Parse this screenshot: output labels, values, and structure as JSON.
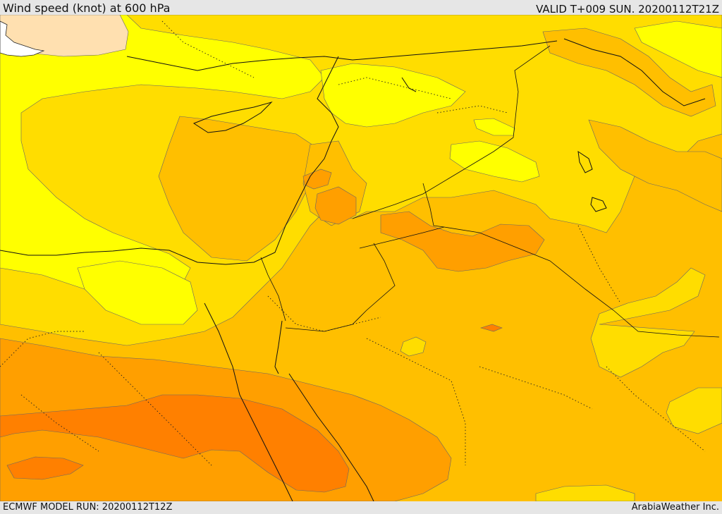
{
  "header": {
    "title": "Wind speed (knot) at 600 hPa",
    "valid": "VALID T+009 SUN. 20200112T21Z"
  },
  "footer": {
    "model_run": "ECMWF MODEL RUN: 20200112T12Z",
    "credit": "ArabiaWeather Inc."
  },
  "map": {
    "field": "wind speed",
    "level": "600 hPa",
    "colors": {
      "lightest": "#ffe0b0",
      "yellow": "#ffff00",
      "gold": "#ffdd00",
      "amber": "#ffbf00",
      "orange": "#ff9f00",
      "dark_orange": "#ff8000",
      "land_unshaded": "#ffffff"
    }
  }
}
